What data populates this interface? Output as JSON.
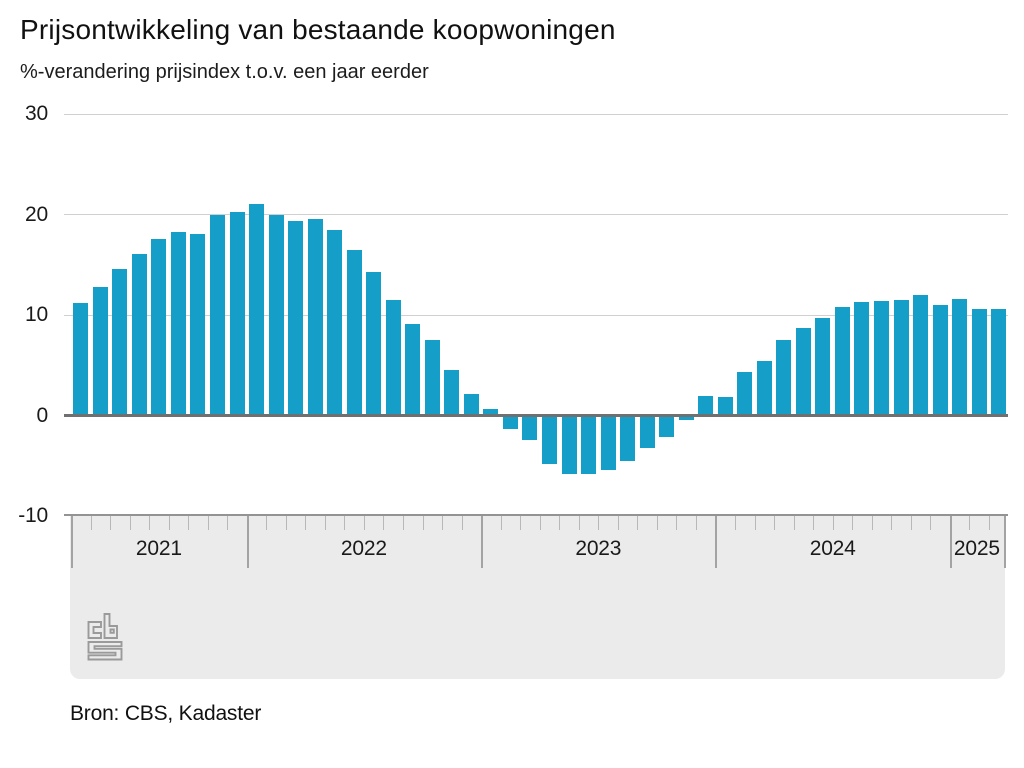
{
  "title": "Prijsontwikkeling van bestaande koopwoningen",
  "subtitle": "%-verandering prijsindex t.o.v. een jaar eerder",
  "source": "Bron: CBS, Kadaster",
  "logo": "cbs-logo",
  "colors": {
    "bar": "#149ec8",
    "zero_line": "#707070",
    "gridline": "#d0d0d0",
    "band_background": "#ebebeb",
    "logo_gray": "#9a9a9a"
  },
  "chart_data": {
    "type": "bar",
    "title": "Prijsontwikkeling van bestaande koopwoningen",
    "subtitle": "%-verandering prijsindex t.o.v. een jaar eerder",
    "x": [
      "2021-04",
      "2021-05",
      "2021-06",
      "2021-07",
      "2021-08",
      "2021-09",
      "2021-10",
      "2021-11",
      "2021-12",
      "2022-01",
      "2022-02",
      "2022-03",
      "2022-04",
      "2022-05",
      "2022-06",
      "2022-07",
      "2022-08",
      "2022-09",
      "2022-10",
      "2022-11",
      "2022-12",
      "2023-01",
      "2023-02",
      "2023-03",
      "2023-04",
      "2023-05",
      "2023-06",
      "2023-07",
      "2023-08",
      "2023-09",
      "2023-10",
      "2023-11",
      "2023-12",
      "2024-01",
      "2024-02",
      "2024-03",
      "2024-04",
      "2024-05",
      "2024-06",
      "2024-07",
      "2024-08",
      "2024-09",
      "2024-10",
      "2024-11",
      "2024-12",
      "2025-01",
      "2025-02",
      "2025-03"
    ],
    "values": [
      11.2,
      12.8,
      14.6,
      16.1,
      17.6,
      18.3,
      18.1,
      20.0,
      20.2,
      21.0,
      20.0,
      19.4,
      19.6,
      18.5,
      16.5,
      14.3,
      11.5,
      9.1,
      7.5,
      4.5,
      2.1,
      0.6,
      -1.3,
      -2.4,
      -4.8,
      -5.8,
      -5.8,
      -5.4,
      -4.5,
      -3.2,
      -2.1,
      -0.4,
      1.9,
      1.8,
      4.3,
      5.4,
      7.5,
      8.7,
      9.7,
      10.8,
      11.3,
      11.4,
      11.5,
      12.0,
      11.0,
      11.6,
      10.6,
      10.6
    ],
    "ylim": [
      -10,
      30
    ],
    "yticks": [
      30,
      20,
      10,
      0,
      -10
    ],
    "year_labels": [
      "2021",
      "2022",
      "2023",
      "2024",
      "2025"
    ],
    "grid": "horizontal",
    "legend": "none"
  }
}
